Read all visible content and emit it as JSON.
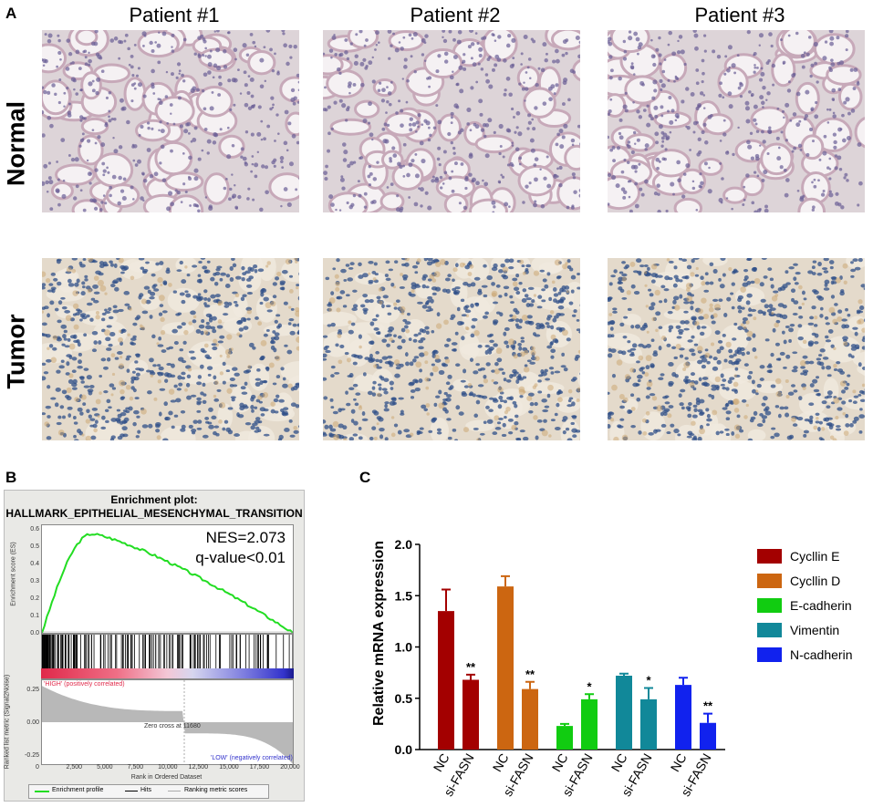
{
  "panelA": {
    "letter": "A",
    "patients": [
      "Patient #1",
      "Patient #2",
      "Patient #3"
    ],
    "rows": [
      "Normal",
      "Tumor"
    ]
  },
  "panelB": {
    "letter": "B",
    "title1": "Enrichment plot:",
    "title2": "HALLMARK_EPITHELIAL_MESENCHYMAL_TRANSITION",
    "nes": "NES=2.073",
    "qvalue": "q-value<0.01",
    "es_ylabel": "Enrichment score (ES)",
    "es_ticks": [
      "0.6",
      "0.5",
      "0.4",
      "0.3",
      "0.2",
      "0.1",
      "0.0"
    ],
    "rank_ylabel": "Ranked list metric (Signal2Noise)",
    "rank_ticks": [
      "0.25",
      "0.00",
      "-0.25"
    ],
    "high_label": "'HIGH' (positively correlated)",
    "low_label": "'LOW' (negatively correlated)",
    "zero_cross": "Zero cross at 11680",
    "x_ticks": [
      "0",
      "2,500",
      "5,000",
      "7,500",
      "10,000",
      "12,500",
      "15,000",
      "17,500",
      "20,000"
    ],
    "xlabel": "Rank in Ordered Dataset",
    "legend": [
      "Enrichment profile",
      "Hits",
      "Ranking metric scores"
    ],
    "colors": {
      "es": "#22dd22",
      "high": "#e0294a",
      "low": "#3333cc"
    }
  },
  "panelC": {
    "letter": "C",
    "chart_data": {
      "type": "bar",
      "ylabel": "Relative mRNA expression",
      "ylim": [
        0,
        2.0
      ],
      "yticks": [
        "0.0",
        "0.5",
        "1.0",
        "1.5",
        "2.0"
      ],
      "groups": [
        {
          "name": "Cycllin E",
          "color": "#a30000",
          "values": [
            1.35,
            0.68
          ],
          "errors": [
            0.21,
            0.05
          ],
          "sig": [
            "",
            "**"
          ]
        },
        {
          "name": "Cycllin D",
          "color": "#cc6611",
          "values": [
            1.59,
            0.59
          ],
          "errors": [
            0.1,
            0.07
          ],
          "sig": [
            "",
            "**"
          ]
        },
        {
          "name": "E-cadherin",
          "color": "#11cc11",
          "values": [
            0.23,
            0.49
          ],
          "errors": [
            0.02,
            0.05
          ],
          "sig": [
            "",
            "*"
          ]
        },
        {
          "name": "Vimentin",
          "color": "#118899",
          "values": [
            0.72,
            0.49
          ],
          "errors": [
            0.02,
            0.11
          ],
          "sig": [
            "",
            "*"
          ]
        },
        {
          "name": "N-cadherin",
          "color": "#1122ee",
          "values": [
            0.63,
            0.26
          ],
          "errors": [
            0.07,
            0.09
          ],
          "sig": [
            "",
            "**"
          ]
        }
      ],
      "categories": [
        "NC",
        "si-FASN"
      ]
    }
  }
}
